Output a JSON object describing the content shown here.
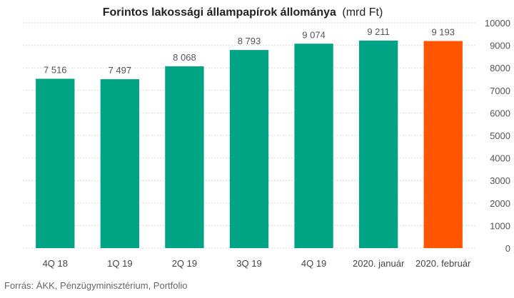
{
  "chart_data": {
    "type": "bar",
    "title_bold": "Forintos lakossági állampapírok állománya",
    "title_unit": "(mrd Ft)",
    "categories": [
      "4Q 18",
      "1Q 19",
      "2Q 19",
      "3Q 19",
      "4Q 19",
      "2020. január",
      "2020. február"
    ],
    "values": [
      7516,
      7497,
      8068,
      8793,
      9074,
      9211,
      9193
    ],
    "value_labels": [
      "7 516",
      "7 497",
      "8 068",
      "8 793",
      "9 074",
      "9 211",
      "9 193"
    ],
    "bar_colors": [
      "#00a383",
      "#00a383",
      "#00a383",
      "#00a383",
      "#00a383",
      "#00a383",
      "#ff5500"
    ],
    "ylim": [
      0,
      10000
    ],
    "yticks": [
      0,
      1000,
      2000,
      3000,
      4000,
      5000,
      6000,
      7000,
      8000,
      9000,
      10000
    ],
    "y_axis_side": "right",
    "grid": true,
    "source": "Forrás: ÁKK, Pénzügyminisztérium, Portfolio"
  }
}
